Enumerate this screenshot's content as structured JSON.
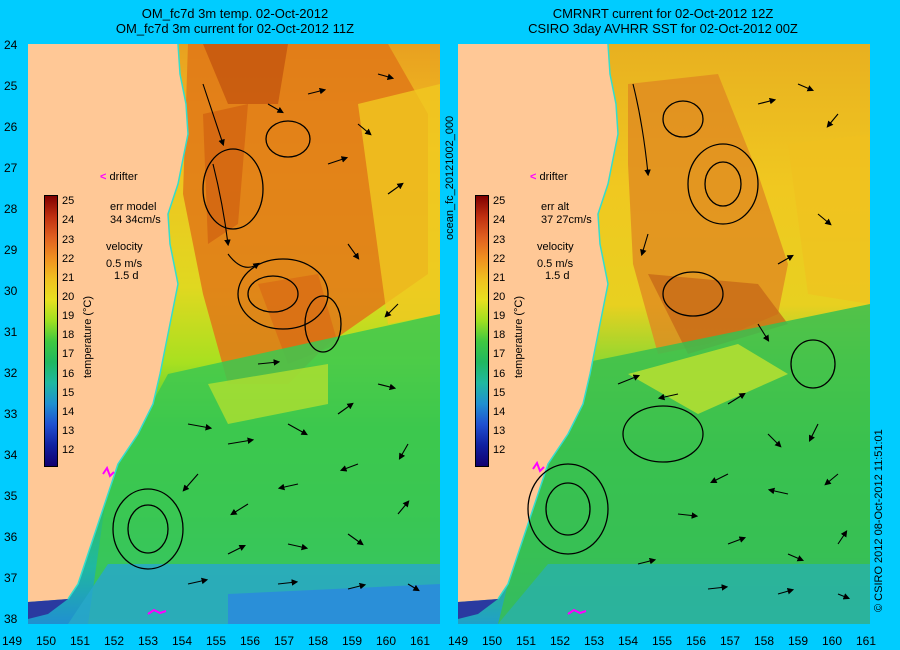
{
  "left_title": {
    "line1": "OM_fc7d 3m temp. 02-Oct-2012",
    "line2": "OM_fc7d 3m current for 02-Oct-2012 11Z"
  },
  "right_title": {
    "line1": "CMRNRT current for 02-Oct-2012 12Z",
    "line2": "CSIRO 3day AVHRR SST for 02-Oct-2012 00Z"
  },
  "lat_labels": [
    "24",
    "25",
    "26",
    "27",
    "28",
    "29",
    "30",
    "31",
    "32",
    "33",
    "34",
    "35",
    "36",
    "37",
    "38"
  ],
  "lon_labels_left": [
    "149",
    "150",
    "151",
    "152",
    "153",
    "154",
    "155",
    "156",
    "157",
    "158",
    "159",
    "160",
    "161"
  ],
  "lon_labels_right": [
    "149",
    "150",
    "151",
    "152",
    "153",
    "154",
    "155",
    "156",
    "157",
    "158",
    "159",
    "160",
    "161"
  ],
  "colorbar": {
    "ticks": [
      "25",
      "24",
      "23",
      "22",
      "21",
      "20",
      "19",
      "18",
      "17",
      "16",
      "15",
      "14",
      "13",
      "12"
    ],
    "label": "temperature (°C)"
  },
  "left_panel": {
    "drifter": "drifter",
    "err_title": "err model",
    "err_value": "34 34cm/s",
    "velocity": "velocity",
    "speed": "0.5 m/s",
    "duration": "1.5 d"
  },
  "right_panel": {
    "drifter": "drifter",
    "err_title": "err alt",
    "err_value": "37 27cm/s",
    "velocity": "velocity",
    "speed": "0.5 m/s",
    "duration": "1.5 d"
  },
  "mid_vertical": "ocean_fc_20121002_000",
  "right_vertical": "© CSIRO 2012   08-Oct-2012 11:51:01",
  "colors": {
    "land": "#ffc896",
    "coast": "#33ddcc",
    "bg": "#00ccff",
    "drifter": "#ff00ff"
  }
}
